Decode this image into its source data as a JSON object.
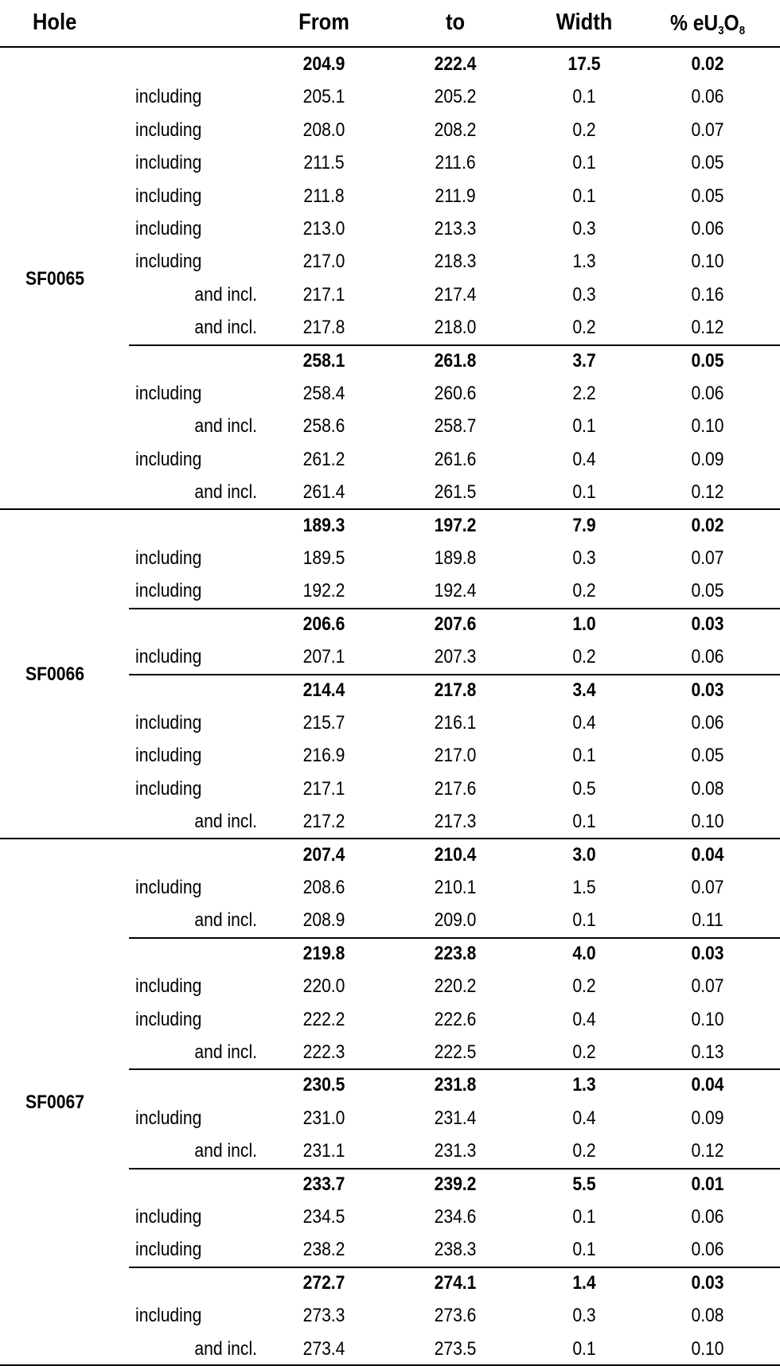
{
  "header": {
    "hole": "Hole",
    "from": "From",
    "to": "to",
    "width": "Width",
    "grade": [
      "% eU",
      "3",
      "O",
      "8"
    ]
  },
  "holes": [
    {
      "hole": "SF0065",
      "intervals": [
        [
          [
            "204.9",
            "222.4",
            "17.5",
            "0.02"
          ],
          [
            "including",
            "205.1",
            "205.2",
            "0.1",
            "0.06"
          ],
          [
            "including",
            "208.0",
            "208.2",
            "0.2",
            "0.07"
          ],
          [
            "including",
            "211.5",
            "211.6",
            "0.1",
            "0.05"
          ],
          [
            "including",
            "211.8",
            "211.9",
            "0.1",
            "0.05"
          ],
          [
            "including",
            "213.0",
            "213.3",
            "0.3",
            "0.06"
          ],
          [
            "including",
            "217.0",
            "218.3",
            "1.3",
            "0.10"
          ],
          [
            "and incl.",
            "217.1",
            "217.4",
            "0.3",
            "0.16"
          ],
          [
            "and incl.",
            "217.8",
            "218.0",
            "0.2",
            "0.12"
          ]
        ],
        [
          [
            "258.1",
            "261.8",
            "3.7",
            "0.05"
          ],
          [
            "including",
            "258.4",
            "260.6",
            "2.2",
            "0.06"
          ],
          [
            "and incl.",
            "258.6",
            "258.7",
            "0.1",
            "0.10"
          ],
          [
            "including",
            "261.2",
            "261.6",
            "0.4",
            "0.09"
          ],
          [
            "and incl.",
            "261.4",
            "261.5",
            "0.1",
            "0.12"
          ]
        ]
      ]
    },
    {
      "hole": "SF0066",
      "intervals": [
        [
          [
            "189.3",
            "197.2",
            "7.9",
            "0.02"
          ],
          [
            "including",
            "189.5",
            "189.8",
            "0.3",
            "0.07"
          ],
          [
            "including",
            "192.2",
            "192.4",
            "0.2",
            "0.05"
          ]
        ],
        [
          [
            "206.6",
            "207.6",
            "1.0",
            "0.03"
          ],
          [
            "including",
            "207.1",
            "207.3",
            "0.2",
            "0.06"
          ]
        ],
        [
          [
            "214.4",
            "217.8",
            "3.4",
            "0.03"
          ],
          [
            "including",
            "215.7",
            "216.1",
            "0.4",
            "0.06"
          ],
          [
            "including",
            "216.9",
            "217.0",
            "0.1",
            "0.05"
          ],
          [
            "including",
            "217.1",
            "217.6",
            "0.5",
            "0.08"
          ],
          [
            "and incl.",
            "217.2",
            "217.3",
            "0.1",
            "0.10"
          ]
        ]
      ]
    },
    {
      "hole": "SF0067",
      "intervals": [
        [
          [
            "207.4",
            "210.4",
            "3.0",
            "0.04"
          ],
          [
            "including",
            "208.6",
            "210.1",
            "1.5",
            "0.07"
          ],
          [
            "and incl.",
            "208.9",
            "209.0",
            "0.1",
            "0.11"
          ]
        ],
        [
          [
            "219.8",
            "223.8",
            "4.0",
            "0.03"
          ],
          [
            "including",
            "220.0",
            "220.2",
            "0.2",
            "0.07"
          ],
          [
            "including",
            "222.2",
            "222.6",
            "0.4",
            "0.10"
          ],
          [
            "and incl.",
            "222.3",
            "222.5",
            "0.2",
            "0.13"
          ]
        ],
        [
          [
            "230.5",
            "231.8",
            "1.3",
            "0.04"
          ],
          [
            "including",
            "231.0",
            "231.4",
            "0.4",
            "0.09"
          ],
          [
            "and incl.",
            "231.1",
            "231.3",
            "0.2",
            "0.12"
          ]
        ],
        [
          [
            "233.7",
            "239.2",
            "5.5",
            "0.01"
          ],
          [
            "including",
            "234.5",
            "234.6",
            "0.1",
            "0.06"
          ],
          [
            "including",
            "238.2",
            "238.3",
            "0.1",
            "0.06"
          ]
        ],
        [
          [
            "272.7",
            "274.1",
            "1.4",
            "0.03"
          ],
          [
            "including",
            "273.3",
            "273.6",
            "0.3",
            "0.08"
          ],
          [
            "and incl.",
            "273.4",
            "273.5",
            "0.1",
            "0.10"
          ]
        ]
      ]
    }
  ]
}
